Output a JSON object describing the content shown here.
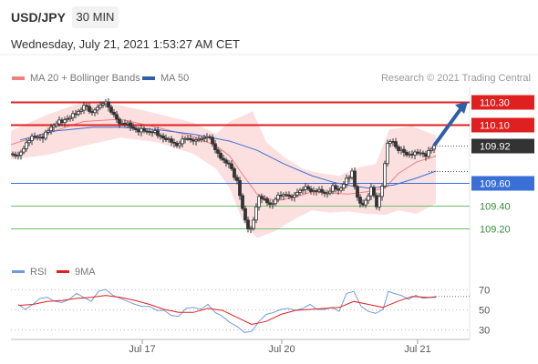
{
  "header": {
    "symbol": "USD/JPY",
    "timeframe": "30 MIN",
    "datetime": "Wednesday, July 21, 2021 1:53:27 AM CET"
  },
  "legend": {
    "ma20_label": "MA 20 + Bollinger Bands",
    "ma50_label": "MA 50",
    "rsi_label": "RSI",
    "rsi_ma_label": "9MA",
    "credit": "Research © 2021 Trading Central"
  },
  "colors": {
    "resistance": "#e02020",
    "support_key": "#3a6fd8",
    "support_minor": "#6bbf6b",
    "current": "#333333",
    "bollinger_fill": "#fcdada",
    "ma20": "#f08080",
    "ma50": "#3a6fd8",
    "arrow": "#2f5fa6",
    "rsi": "#6f9be0",
    "rsi_ma": "#e02020",
    "candle_up": "#ffffff",
    "candle_down": "#333333"
  },
  "chart_data": [
    {
      "type": "candlestick",
      "title": "USD/JPY",
      "ylim": [
        108.95,
        110.45
      ],
      "x_ticks": [
        "Jul 17",
        "Jul 20",
        "Jul 21"
      ],
      "levels": [
        {
          "value": 110.3,
          "label": "110.30",
          "kind": "resistance"
        },
        {
          "value": 110.1,
          "label": "110.10",
          "kind": "resistance"
        },
        {
          "value": 109.92,
          "label": "109.92",
          "kind": "current"
        },
        {
          "value": 109.6,
          "label": "109.60",
          "kind": "support_key"
        },
        {
          "value": 109.4,
          "label": "109.40",
          "kind": "support_minor"
        },
        {
          "value": 109.2,
          "label": "109.20",
          "kind": "support_minor"
        }
      ],
      "price_path": [
        [
          0,
          109.85
        ],
        [
          8,
          109.82
        ],
        [
          16,
          109.94
        ],
        [
          24,
          109.99
        ],
        [
          36,
          110.0
        ],
        [
          44,
          110.08
        ],
        [
          54,
          110.13
        ],
        [
          64,
          110.16
        ],
        [
          72,
          110.2
        ],
        [
          80,
          110.27
        ],
        [
          88,
          110.2
        ],
        [
          96,
          110.26
        ],
        [
          104,
          110.3
        ],
        [
          112,
          110.18
        ],
        [
          120,
          110.12
        ],
        [
          128,
          110.1
        ],
        [
          136,
          110.06
        ],
        [
          144,
          110.05
        ],
        [
          152,
          110.04
        ],
        [
          160,
          110.03
        ],
        [
          168,
          109.98
        ],
        [
          176,
          109.95
        ],
        [
          184,
          109.93
        ],
        [
          192,
          109.99
        ],
        [
          200,
          109.96
        ],
        [
          208,
          109.98
        ],
        [
          216,
          110.0
        ],
        [
          224,
          109.9
        ],
        [
          232,
          109.78
        ],
        [
          240,
          109.76
        ],
        [
          248,
          109.6
        ],
        [
          252,
          109.45
        ],
        [
          256,
          109.3
        ],
        [
          262,
          109.15
        ],
        [
          268,
          109.36
        ],
        [
          272,
          109.48
        ],
        [
          278,
          109.44
        ],
        [
          284,
          109.41
        ],
        [
          292,
          109.47
        ],
        [
          300,
          109.5
        ],
        [
          308,
          109.47
        ],
        [
          316,
          109.53
        ],
        [
          324,
          109.55
        ],
        [
          332,
          109.53
        ],
        [
          340,
          109.52
        ],
        [
          346,
          109.5
        ],
        [
          352,
          109.56
        ],
        [
          360,
          109.53
        ],
        [
          368,
          109.62
        ],
        [
          374,
          109.7
        ],
        [
          378,
          109.52
        ],
        [
          384,
          109.38
        ],
        [
          390,
          109.46
        ],
        [
          396,
          109.58
        ],
        [
          400,
          109.36
        ],
        [
          404,
          109.48
        ],
        [
          408,
          109.6
        ],
        [
          412,
          109.93
        ],
        [
          418,
          109.97
        ],
        [
          424,
          109.88
        ],
        [
          432,
          109.86
        ],
        [
          440,
          109.84
        ],
        [
          448,
          109.86
        ],
        [
          456,
          109.84
        ],
        [
          464,
          109.92
        ]
      ],
      "bollinger_upper": [
        [
          0,
          110.05
        ],
        [
          40,
          110.19
        ],
        [
          80,
          110.3
        ],
        [
          120,
          110.27
        ],
        [
          160,
          110.2
        ],
        [
          200,
          110.12
        ],
        [
          225,
          110.02
        ],
        [
          240,
          110.13
        ],
        [
          255,
          110.18
        ],
        [
          265,
          110.22
        ],
        [
          280,
          109.95
        ],
        [
          300,
          109.82
        ],
        [
          320,
          109.72
        ],
        [
          340,
          109.68
        ],
        [
          360,
          109.66
        ],
        [
          380,
          109.73
        ],
        [
          400,
          109.76
        ],
        [
          415,
          110.06
        ],
        [
          440,
          110.09
        ],
        [
          466,
          110.01
        ]
      ],
      "bollinger_lower": [
        [
          0,
          109.8
        ],
        [
          40,
          109.84
        ],
        [
          80,
          109.92
        ],
        [
          120,
          109.99
        ],
        [
          160,
          109.95
        ],
        [
          200,
          109.85
        ],
        [
          225,
          109.72
        ],
        [
          240,
          109.55
        ],
        [
          255,
          109.25
        ],
        [
          270,
          109.12
        ],
        [
          290,
          109.18
        ],
        [
          310,
          109.28
        ],
        [
          330,
          109.36
        ],
        [
          350,
          109.34
        ],
        [
          370,
          109.35
        ],
        [
          390,
          109.33
        ],
        [
          410,
          109.32
        ],
        [
          425,
          109.36
        ],
        [
          445,
          109.33
        ],
        [
          466,
          109.42
        ]
      ],
      "ma20": [
        [
          0,
          109.93
        ],
        [
          40,
          110.03
        ],
        [
          80,
          110.13
        ],
        [
          120,
          110.15
        ],
        [
          160,
          110.08
        ],
        [
          200,
          110.0
        ],
        [
          225,
          109.92
        ],
        [
          240,
          109.83
        ],
        [
          255,
          109.66
        ],
        [
          270,
          109.5
        ],
        [
          290,
          109.44
        ],
        [
          310,
          109.47
        ],
        [
          330,
          109.52
        ],
        [
          350,
          109.51
        ],
        [
          370,
          109.5
        ],
        [
          390,
          109.52
        ],
        [
          410,
          109.55
        ],
        [
          425,
          109.68
        ],
        [
          445,
          109.78
        ],
        [
          466,
          109.83
        ]
      ],
      "ma50": [
        [
          10,
          109.97
        ],
        [
          50,
          110.05
        ],
        [
          90,
          110.08
        ],
        [
          120,
          110.08
        ],
        [
          160,
          110.06
        ],
        [
          200,
          110.02
        ],
        [
          240,
          109.96
        ],
        [
          270,
          109.88
        ],
        [
          300,
          109.76
        ],
        [
          330,
          109.66
        ],
        [
          355,
          109.6
        ],
        [
          375,
          109.57
        ],
        [
          395,
          109.55
        ],
        [
          420,
          109.58
        ],
        [
          445,
          109.64
        ],
        [
          466,
          109.7
        ]
      ]
    },
    {
      "type": "line",
      "title": "RSI",
      "ylim": [
        20,
        80
      ],
      "y_ticks": [
        70,
        50,
        30
      ],
      "series": [
        {
          "name": "RSI",
          "points": [
            [
              8,
              55
            ],
            [
              16,
              50
            ],
            [
              24,
              55
            ],
            [
              32,
              61
            ],
            [
              40,
              62
            ],
            [
              48,
              58
            ],
            [
              56,
              57
            ],
            [
              64,
              60
            ],
            [
              72,
              66
            ],
            [
              80,
              62
            ],
            [
              88,
              58
            ],
            [
              96,
              68
            ],
            [
              104,
              70
            ],
            [
              112,
              64
            ],
            [
              120,
              61
            ],
            [
              128,
              58
            ],
            [
              136,
              55
            ],
            [
              144,
              53
            ],
            [
              152,
              53
            ],
            [
              160,
              49
            ],
            [
              168,
              49
            ],
            [
              176,
              44
            ],
            [
              184,
              43
            ],
            [
              192,
              51
            ],
            [
              200,
              52
            ],
            [
              208,
              50
            ],
            [
              216,
              55
            ],
            [
              224,
              47
            ],
            [
              232,
              43
            ],
            [
              240,
              37
            ],
            [
              248,
              33
            ],
            [
              256,
              27
            ],
            [
              264,
              28
            ],
            [
              272,
              38
            ],
            [
              280,
              45
            ],
            [
              288,
              47
            ],
            [
              296,
              50
            ],
            [
              304,
              51
            ],
            [
              312,
              49
            ],
            [
              320,
              51
            ],
            [
              328,
              55
            ],
            [
              336,
              50
            ],
            [
              344,
              50
            ],
            [
              352,
              52
            ],
            [
              360,
              48
            ],
            [
              368,
              66
            ],
            [
              376,
              68
            ],
            [
              384,
              53
            ],
            [
              392,
              48
            ],
            [
              400,
              46
            ],
            [
              408,
              50
            ],
            [
              414,
              68
            ],
            [
              420,
              66
            ],
            [
              428,
              64
            ],
            [
              436,
              60
            ],
            [
              444,
              64
            ],
            [
              452,
              61
            ],
            [
              460,
              62
            ],
            [
              466,
              63
            ]
          ]
        },
        {
          "name": "9MA",
          "points": [
            [
              8,
              54
            ],
            [
              24,
              55
            ],
            [
              40,
              58
            ],
            [
              56,
              59
            ],
            [
              72,
              61
            ],
            [
              88,
              62
            ],
            [
              104,
              64
            ],
            [
              120,
              62
            ],
            [
              136,
              59
            ],
            [
              152,
              55
            ],
            [
              168,
              50
            ],
            [
              184,
              47
            ],
            [
              200,
              47
            ],
            [
              216,
              51
            ],
            [
              232,
              49
            ],
            [
              248,
              42
            ],
            [
              264,
              35
            ],
            [
              280,
              38
            ],
            [
              296,
              45
            ],
            [
              312,
              49
            ],
            [
              328,
              50
            ],
            [
              344,
              51
            ],
            [
              360,
              52
            ],
            [
              376,
              58
            ],
            [
              392,
              55
            ],
            [
              408,
              52
            ],
            [
              424,
              58
            ],
            [
              440,
              63
            ],
            [
              456,
              62
            ],
            [
              466,
              62
            ]
          ]
        }
      ]
    }
  ]
}
